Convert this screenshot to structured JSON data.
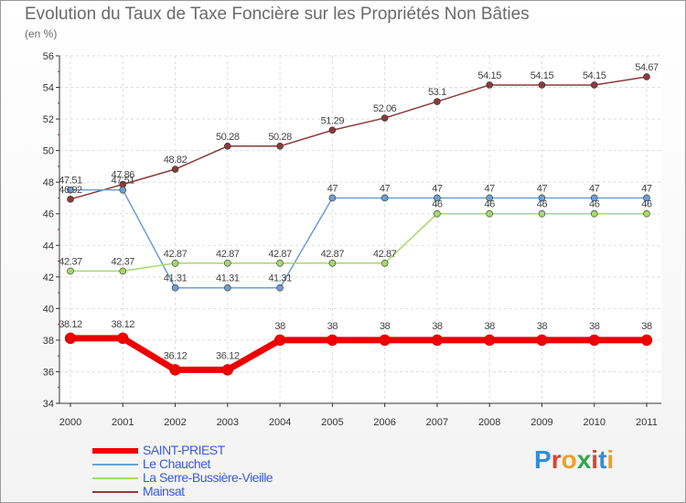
{
  "header": {
    "title": "Evolution du Taux de Taxe Foncière sur les Propriétés Non Bâties",
    "unit": "(en %)"
  },
  "chart_data": {
    "type": "line",
    "title": "Evolution du Taux de Taxe Foncière sur les Propriétés Non Bâties",
    "ylabel": "(en %)",
    "xlabel": "",
    "ylim": [
      34,
      56
    ],
    "yticks": [
      "34",
      "36",
      "38",
      "40",
      "42",
      "44",
      "46",
      "48",
      "50",
      "52",
      "54",
      "56"
    ],
    "categories": [
      "2000",
      "2001",
      "2002",
      "2003",
      "2004",
      "2005",
      "2006",
      "2007",
      "2008",
      "2009",
      "2010",
      "2011"
    ],
    "grid": true,
    "series": [
      {
        "name": "SAINT-PRIEST",
        "color": "#ee0000",
        "values": [
          38.12,
          38.12,
          36.12,
          36.12,
          38,
          38,
          38,
          38,
          38,
          38,
          38,
          38
        ],
        "labels": [
          "38.12",
          "38.12",
          "36.12",
          "36.12",
          "38",
          "38",
          "38",
          "38",
          "38",
          "38",
          "38",
          "38"
        ]
      },
      {
        "name": "Le Chauchet",
        "color": "#6d9fd0",
        "values": [
          47.51,
          47.51,
          41.31,
          41.31,
          41.31,
          47,
          47,
          47,
          47,
          47,
          47,
          47
        ],
        "labels": [
          "47.51",
          "47.51",
          "41.31",
          "41.31",
          "41.31",
          "47",
          "47",
          "47",
          "47",
          "47",
          "47",
          "47"
        ]
      },
      {
        "name": "La Serre-Bussière-Vieille",
        "color": "#a6d96a",
        "values": [
          42.37,
          42.37,
          42.87,
          42.87,
          42.87,
          42.87,
          42.87,
          46,
          46,
          46,
          46,
          46
        ],
        "labels": [
          "42.37",
          "42.37",
          "42.87",
          "42.87",
          "42.87",
          "42.87",
          "42.87",
          "46",
          "46",
          "46",
          "46",
          "46"
        ]
      },
      {
        "name": "Mainsat",
        "color": "#8b3a3a",
        "values": [
          46.92,
          47.86,
          48.82,
          50.28,
          50.28,
          51.29,
          52.06,
          53.1,
          54.15,
          54.15,
          54.15,
          54.67
        ],
        "labels": [
          "46.92",
          "47.86",
          "48.82",
          "50.28",
          "50.28",
          "51.29",
          "52.06",
          "53.1",
          "54.15",
          "54.15",
          "54.15",
          "54.67"
        ]
      }
    ]
  },
  "legend": {
    "items": [
      {
        "label": "SAINT-PRIEST",
        "color": "#ee0000"
      },
      {
        "label": "Le Chauchet",
        "color": "#6d9fd0"
      },
      {
        "label": "La Serre-Bussière-Vieille",
        "color": "#a6d96a"
      },
      {
        "label": "Mainsat",
        "color": "#8b3a3a"
      }
    ]
  },
  "logo": {
    "text": "Proxiti",
    "colors": [
      "#2f8fd8",
      "#e0402a",
      "#f0a020",
      "#2fa84a",
      "#e0402a",
      "#2f8fd8",
      "#f0a020"
    ]
  }
}
